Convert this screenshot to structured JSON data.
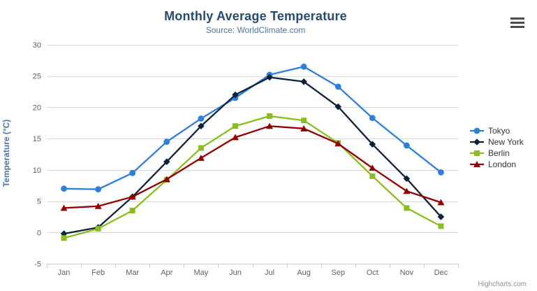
{
  "header": {
    "title": "Monthly Average Temperature",
    "subtitle": "Source: WorldClimate.com"
  },
  "menu": {
    "icon": "hamburger-menu-icon"
  },
  "credits": {
    "label": "Highcharts.com"
  },
  "palette": {
    "title_color": "#274b6d",
    "subtitle_color": "#4d759e",
    "yaxis_title_color": "#4d759e",
    "tick_label_color": "#606060",
    "grid_color": "#d8d8d8",
    "axis_line_color": "#c0d0e0",
    "legend_text_color": "#333333",
    "credits_color": "#909090"
  },
  "chart_data": {
    "type": "line",
    "title": "Monthly Average Temperature",
    "subtitle": "Source: WorldClimate.com",
    "xlabel": "",
    "ylabel": "Temperature (°C)",
    "ylim": [
      -5,
      30
    ],
    "yticks": [
      30,
      25,
      20,
      15,
      10,
      5,
      0,
      -5
    ],
    "grid": true,
    "legend_position": "right",
    "categories": [
      "Jan",
      "Feb",
      "Mar",
      "Apr",
      "May",
      "Jun",
      "Jul",
      "Aug",
      "Sep",
      "Oct",
      "Nov",
      "Dec"
    ],
    "series": [
      {
        "name": "Tokyo",
        "color": "#2f7ed8",
        "marker": "circle",
        "values": [
          7.0,
          6.9,
          9.5,
          14.5,
          18.2,
          21.5,
          25.2,
          26.5,
          23.3,
          18.3,
          13.9,
          9.6
        ]
      },
      {
        "name": "New York",
        "color": "#0d233a",
        "marker": "diamond",
        "values": [
          -0.2,
          0.8,
          5.7,
          11.3,
          17.0,
          22.0,
          24.8,
          24.1,
          20.1,
          14.1,
          8.6,
          2.5
        ]
      },
      {
        "name": "Berlin",
        "color": "#8bbc21",
        "marker": "square",
        "values": [
          -0.9,
          0.6,
          3.5,
          8.4,
          13.5,
          17.0,
          18.6,
          17.9,
          14.3,
          9.0,
          3.9,
          1.0
        ]
      },
      {
        "name": "London",
        "color": "#910000",
        "marker": "triangle",
        "values": [
          3.9,
          4.2,
          5.7,
          8.5,
          11.9,
          15.2,
          17.0,
          16.6,
          14.2,
          10.3,
          6.6,
          4.8
        ]
      }
    ]
  }
}
